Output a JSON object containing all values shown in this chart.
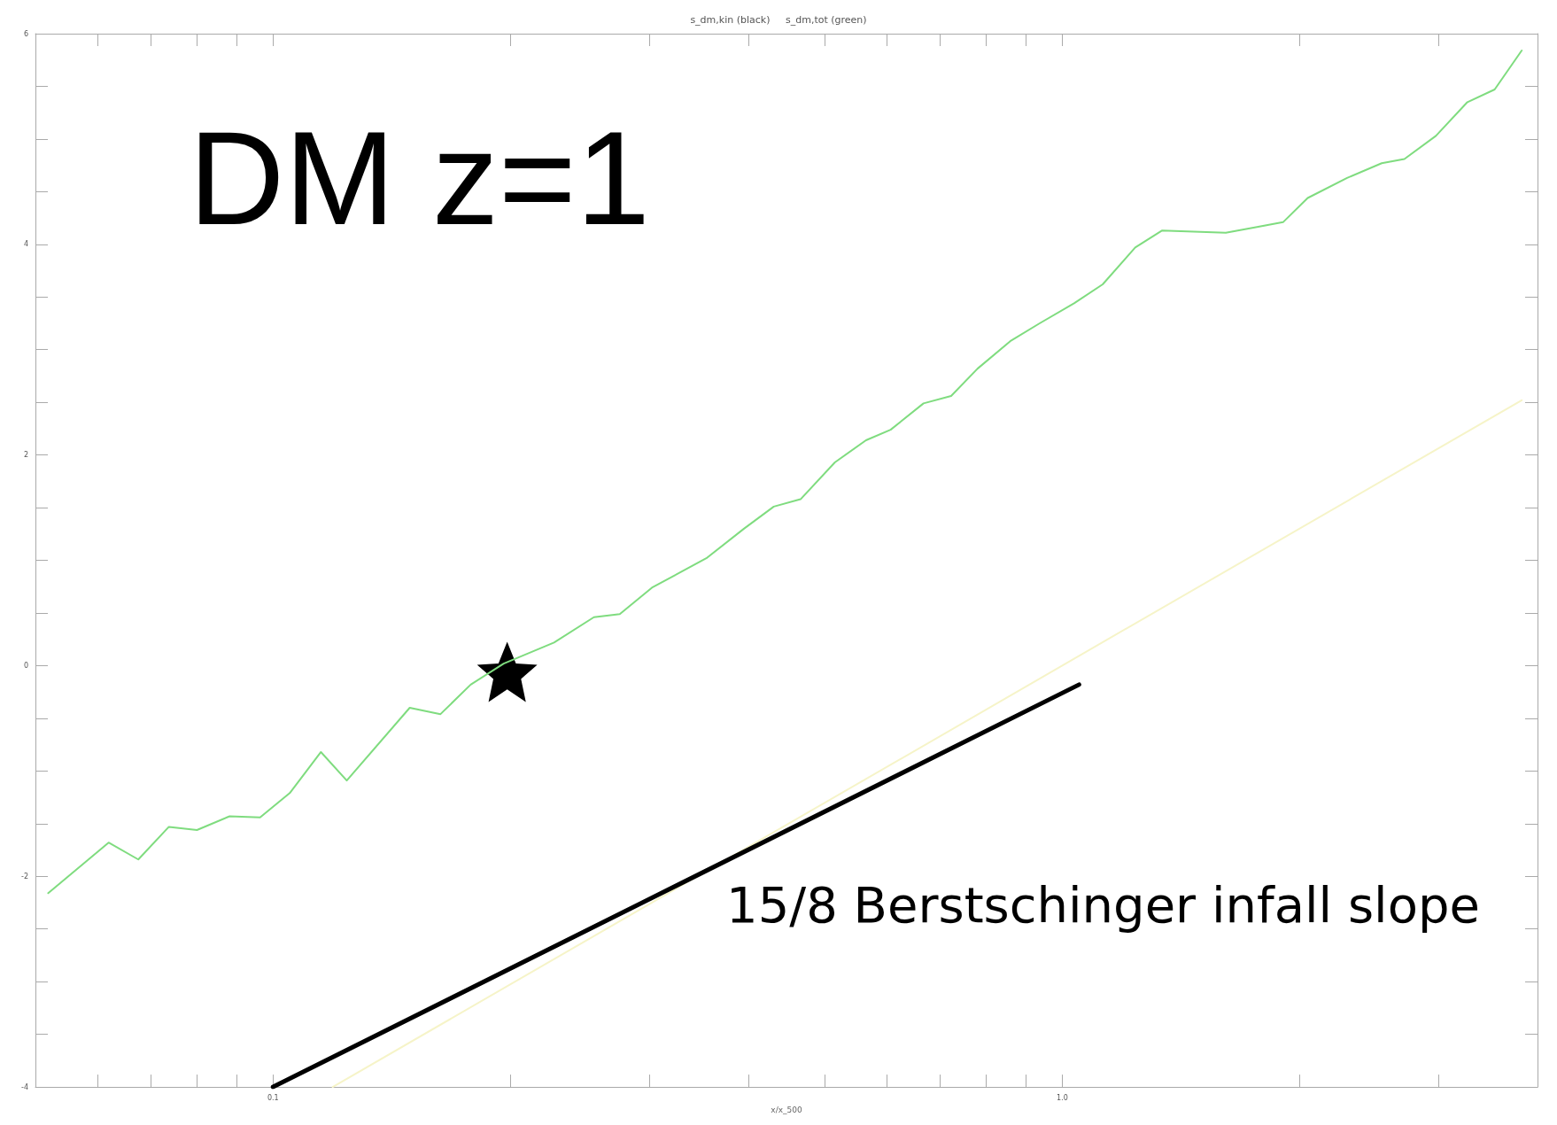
{
  "chart_data": {
    "type": "line",
    "title": "s_dm,kin (black)     s_dm,tot (green)",
    "xlabel": "x/x_500",
    "log": "x",
    "xlim": [
      0.05,
      4
    ],
    "ylim": [
      -4,
      6
    ],
    "xticks": [
      {
        "value": 0.06,
        "label": null
      },
      {
        "value": 0.07,
        "label": null
      },
      {
        "value": 0.08,
        "label": null
      },
      {
        "value": 0.09,
        "label": null
      },
      0.1,
      {
        "value": 0.2,
        "label": null
      },
      {
        "value": 0.3,
        "label": null
      },
      {
        "value": 0.4,
        "label": null
      },
      {
        "value": 0.5,
        "label": null
      },
      {
        "value": 0.6,
        "label": null
      },
      {
        "value": 0.7,
        "label": null
      },
      {
        "value": 0.8,
        "label": null
      },
      {
        "value": 0.9,
        "label": null
      },
      {
        "value": 1,
        "label": "1.0"
      },
      {
        "value": 2,
        "label": null
      },
      {
        "value": 3,
        "label": null
      }
    ],
    "yticks": [
      -4,
      {
        "value": -3.5,
        "label": null
      },
      {
        "value": -3,
        "label": null
      },
      {
        "value": -2.5,
        "label": null
      },
      -2,
      {
        "value": -1.5,
        "label": null
      },
      {
        "value": -1,
        "label": null
      },
      {
        "value": -0.5,
        "label": null
      },
      0,
      {
        "value": 0.5,
        "label": null
      },
      {
        "value": 1,
        "label": null
      },
      {
        "value": 1.5,
        "label": null
      },
      2,
      {
        "value": 2.5,
        "label": null
      },
      {
        "value": 3,
        "label": null
      },
      {
        "value": 3.5,
        "label": null
      },
      4,
      {
        "value": 4.5,
        "label": null
      },
      {
        "value": 5,
        "label": null
      },
      {
        "value": 5.5,
        "label": null
      },
      6
    ],
    "grid": false,
    "annotations": [
      "DM z=1",
      "15/8 Berstschinger infall slope"
    ],
    "series": [
      {
        "color": "#7fdc7f",
        "marker": "none",
        "line_style": "solid",
        "x": [
          0.0519,
          0.0619,
          0.0675,
          0.0738,
          0.0801,
          0.0881,
          0.0963,
          0.105,
          0.115,
          0.124,
          0.149,
          0.163,
          0.178,
          0.196,
          0.227,
          0.255,
          0.275,
          0.302,
          0.354,
          0.395,
          0.431,
          0.466,
          0.515,
          0.564,
          0.606,
          0.667,
          0.723,
          0.781,
          0.859,
          0.936,
          1.035,
          1.125,
          1.237,
          1.337,
          1.611,
          1.904,
          2.046,
          2.295,
          2.539,
          2.713,
          2.974,
          3.26,
          3.53,
          3.82
        ],
        "values": [
          -2.16,
          -1.68,
          -1.84,
          -1.53,
          -1.56,
          -1.43,
          -1.44,
          -1.21,
          -0.82,
          -1.09,
          -0.4,
          -0.46,
          -0.18,
          0.02,
          0.22,
          0.46,
          0.49,
          0.74,
          1.02,
          1.3,
          1.51,
          1.58,
          1.93,
          2.14,
          2.24,
          2.49,
          2.56,
          2.82,
          3.08,
          3.25,
          3.44,
          3.62,
          3.97,
          4.13,
          4.11,
          4.21,
          4.44,
          4.63,
          4.77,
          4.81,
          5.03,
          5.35,
          5.47,
          5.84
        ]
      },
      {
        "color": "#f6f4c8",
        "marker": "none",
        "line_style": "solid",
        "x": [
          0.119,
          3.82
        ],
        "values": [
          -4,
          2.52
        ]
      },
      {
        "color": "#000000",
        "marker": "none",
        "line_style": "solid",
        "x": [
          0.1,
          1.05
        ],
        "values": [
          -4,
          -0.18
        ]
      },
      {
        "type": "scatter",
        "color": "#000000",
        "marker": "star",
        "x": [
          0.198
        ],
        "values": [
          -0.06
        ]
      }
    ]
  }
}
